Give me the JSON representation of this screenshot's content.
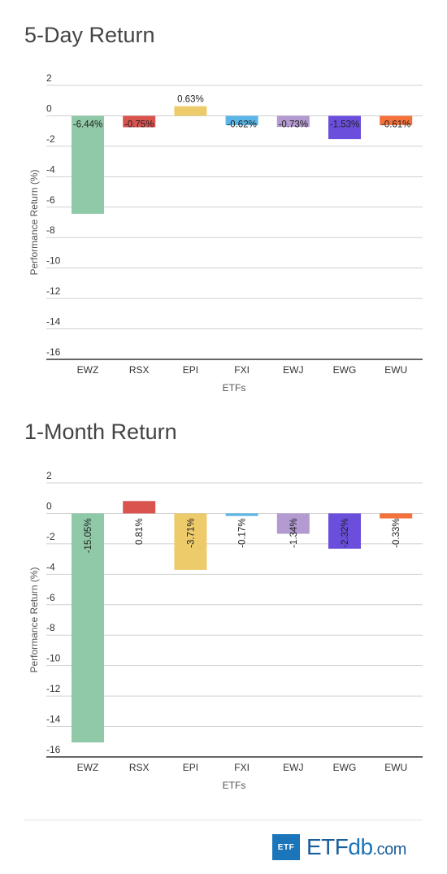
{
  "chart_data": [
    {
      "type": "bar",
      "title": "5-Day Return",
      "xlabel": "ETFs",
      "ylabel": "Performance Return (%)",
      "ylim": [
        -16,
        2
      ],
      "yticks": [
        2,
        0,
        -2,
        -4,
        -6,
        -8,
        -10,
        -12,
        -14,
        -16
      ],
      "grid": true,
      "label_orientation": "horizontal",
      "categories": [
        "EWZ",
        "RSX",
        "EPI",
        "FXI",
        "EWJ",
        "EWG",
        "EWU"
      ],
      "values": [
        -6.44,
        -0.75,
        0.63,
        -0.62,
        -0.73,
        -1.53,
        -0.61
      ],
      "labels": [
        "-6.44%",
        "-0.75%",
        "0.63%",
        "-0.62%",
        "-0.73%",
        "-1.53%",
        "-0.61%"
      ],
      "colors": [
        "#8fc9a7",
        "#d9534f",
        "#eecb6a",
        "#5bb5e6",
        "#b39ad0",
        "#6b4fdc",
        "#f5713b"
      ]
    },
    {
      "type": "bar",
      "title": "1-Month Return",
      "xlabel": "ETFs",
      "ylabel": "Performance Return (%)",
      "ylim": [
        -16,
        2
      ],
      "yticks": [
        2,
        0,
        -2,
        -4,
        -6,
        -8,
        -10,
        -12,
        -14,
        -16
      ],
      "grid": true,
      "label_orientation": "vertical",
      "categories": [
        "EWZ",
        "RSX",
        "EPI",
        "FXI",
        "EWJ",
        "EWG",
        "EWU"
      ],
      "values": [
        -15.05,
        0.81,
        -3.71,
        -0.17,
        -1.34,
        -2.32,
        -0.33
      ],
      "labels": [
        "-15.05%",
        "0.81%",
        "-3.71%",
        "-0.17%",
        "-1.34%",
        "-2.32%",
        "-0.33%"
      ],
      "colors": [
        "#8fc9a7",
        "#d9534f",
        "#eecb6a",
        "#5bb5e6",
        "#b39ad0",
        "#6b4fdc",
        "#f5713b"
      ]
    }
  ],
  "logo": {
    "box_text": "ETF",
    "brand": "ETF",
    "brand2": "db",
    "suffix": ".com"
  }
}
